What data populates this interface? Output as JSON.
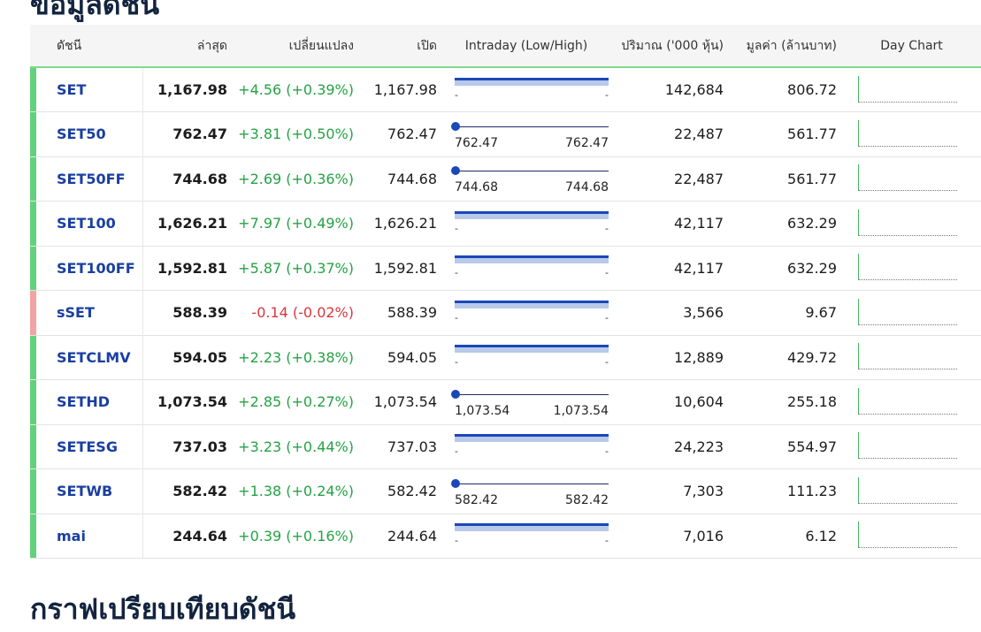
{
  "section_title": "ข้อมูลดัชนี",
  "next_section_title": "กราฟเปรียบเทียบดัชนี",
  "colors": {
    "positive": "#25a244",
    "negative": "#d9363e",
    "link": "#1a3fa0",
    "bar_positive": "#62d17c",
    "bar_negative": "#f2a3a3"
  },
  "columns": {
    "index": "ดัชนี",
    "last": "ล่าสุด",
    "change": "เปลี่ยนแปลง",
    "open": "เปิด",
    "intraday": "Intraday (Low/High)",
    "volume": "ปริมาณ ('000 หุ้น)",
    "value": "มูลค่า (ล้านบาท)",
    "day_chart": "Day Chart"
  },
  "rows": [
    {
      "name": "SET",
      "last": "1,167.98",
      "change": "+4.56 (+0.39%)",
      "dir": "up",
      "open": "1,167.98",
      "intraday": {
        "mode": "bar",
        "low": "-",
        "high": "-"
      },
      "volume": "142,684",
      "value": "806.72"
    },
    {
      "name": "SET50",
      "last": "762.47",
      "change": "+3.81 (+0.50%)",
      "dir": "up",
      "open": "762.47",
      "intraday": {
        "mode": "point",
        "low": "762.47",
        "high": "762.47"
      },
      "volume": "22,487",
      "value": "561.77"
    },
    {
      "name": "SET50FF",
      "last": "744.68",
      "change": "+2.69 (+0.36%)",
      "dir": "up",
      "open": "744.68",
      "intraday": {
        "mode": "point",
        "low": "744.68",
        "high": "744.68"
      },
      "volume": "22,487",
      "value": "561.77"
    },
    {
      "name": "SET100",
      "last": "1,626.21",
      "change": "+7.97 (+0.49%)",
      "dir": "up",
      "open": "1,626.21",
      "intraday": {
        "mode": "bar",
        "low": "-",
        "high": "-"
      },
      "volume": "42,117",
      "value": "632.29"
    },
    {
      "name": "SET100FF",
      "last": "1,592.81",
      "change": "+5.87 (+0.37%)",
      "dir": "up",
      "open": "1,592.81",
      "intraday": {
        "mode": "bar",
        "low": "-",
        "high": "-"
      },
      "volume": "42,117",
      "value": "632.29"
    },
    {
      "name": "sSET",
      "last": "588.39",
      "change": "-0.14 (-0.02%)",
      "dir": "down",
      "open": "588.39",
      "intraday": {
        "mode": "bar",
        "low": "-",
        "high": "-"
      },
      "volume": "3,566",
      "value": "9.67"
    },
    {
      "name": "SETCLMV",
      "last": "594.05",
      "change": "+2.23 (+0.38%)",
      "dir": "up",
      "open": "594.05",
      "intraday": {
        "mode": "bar",
        "low": "-",
        "high": "-"
      },
      "volume": "12,889",
      "value": "429.72"
    },
    {
      "name": "SETHD",
      "last": "1,073.54",
      "change": "+2.85 (+0.27%)",
      "dir": "up",
      "open": "1,073.54",
      "intraday": {
        "mode": "point",
        "low": "1,073.54",
        "high": "1,073.54"
      },
      "volume": "10,604",
      "value": "255.18"
    },
    {
      "name": "SETESG",
      "last": "737.03",
      "change": "+3.23 (+0.44%)",
      "dir": "up",
      "open": "737.03",
      "intraday": {
        "mode": "bar",
        "low": "-",
        "high": "-"
      },
      "volume": "24,223",
      "value": "554.97"
    },
    {
      "name": "SETWB",
      "last": "582.42",
      "change": "+1.38 (+0.24%)",
      "dir": "up",
      "open": "582.42",
      "intraday": {
        "mode": "point",
        "low": "582.42",
        "high": "582.42"
      },
      "volume": "7,303",
      "value": "111.23"
    },
    {
      "name": "mai",
      "last": "244.64",
      "change": "+0.39 (+0.16%)",
      "dir": "up",
      "open": "244.64",
      "intraday": {
        "mode": "bar",
        "low": "-",
        "high": "-"
      },
      "volume": "7,016",
      "value": "6.12"
    }
  ]
}
